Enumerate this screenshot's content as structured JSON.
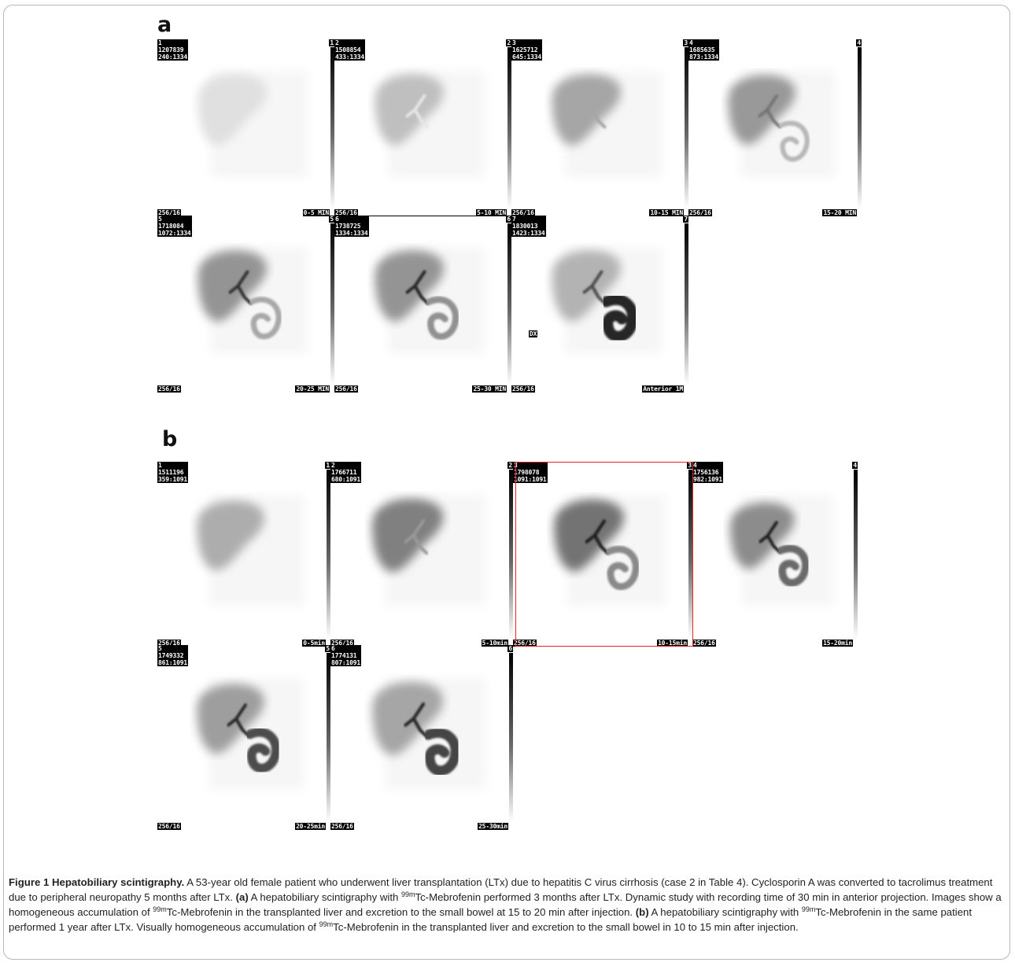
{
  "panel_a": {
    "label": "a",
    "frames": [
      {
        "n": "1",
        "counts": "1207839",
        "ratio": "240:1334",
        "matrix": "256/16",
        "time": "0-5 MIN",
        "bar_num": "1",
        "dark": 0.12,
        "bowel": 0,
        "ducts": 0
      },
      {
        "n": "2",
        "counts": "1508854",
        "ratio": "433:1334",
        "matrix": "256/16",
        "time": "5-10 MIN",
        "bar_num": "2",
        "dark": 0.25,
        "bowel": 0,
        "ducts": 0.1
      },
      {
        "n": "3",
        "counts": "1625712",
        "ratio": "645:1334",
        "matrix": "256/16",
        "time": "10-15 MIN",
        "bar_num": "3",
        "dark": 0.35,
        "bowel": 0,
        "ducts": 0.35
      },
      {
        "n": "4",
        "counts": "1685635",
        "ratio": "873:1334",
        "matrix": "256/16",
        "time": "15-20 MIN",
        "bar_num": "4",
        "dark": 0.4,
        "bowel": 0.05,
        "ducts": 0.55
      },
      {
        "n": "5",
        "counts": "1718084",
        "ratio": "1072:1334",
        "matrix": "256/16",
        "time": "20-25 MIN",
        "bar_num": "5",
        "dark": 0.42,
        "bowel": 0.15,
        "ducts": 0.8
      },
      {
        "n": "6",
        "counts": "1738725",
        "ratio": "1334:1334",
        "matrix": "256/16",
        "time": "25-30 MIN",
        "bar_num": "6",
        "dark": 0.42,
        "bowel": 0.3,
        "ducts": 0.85
      },
      {
        "n": "7",
        "counts": "1830013",
        "ratio": "1423:1334",
        "matrix": "256/16",
        "time": "Anterior 1M",
        "bar_num": "7",
        "dark": 0.3,
        "bowel": 1,
        "ducts": 0.7,
        "marker": "DX"
      }
    ]
  },
  "panel_b": {
    "label": "b",
    "frames": [
      {
        "n": "1",
        "counts": "1511196",
        "ratio": "359:1091",
        "matrix": "256/16",
        "time": "0-5min",
        "bar_num": "1",
        "dark": 0.32,
        "bowel": 0,
        "ducts": 0
      },
      {
        "n": "2",
        "counts": "1766711",
        "ratio": "680:1091",
        "matrix": "256/16",
        "time": "5-10min",
        "bar_num": "2",
        "dark": 0.5,
        "bowel": 0,
        "ducts": 0.4
      },
      {
        "n": "3",
        "counts": "1798078",
        "ratio": "1091:1091",
        "matrix": "256/16",
        "time": "10-15min",
        "bar_num": "3",
        "dark": 0.55,
        "bowel": 0.35,
        "ducts": 0.9
      },
      {
        "n": "4",
        "counts": "1756136",
        "ratio": "982:1091",
        "matrix": "256/16",
        "time": "15-20min",
        "bar_num": "4",
        "dark": 0.45,
        "bowel": 0.55,
        "ducts": 0.9
      },
      {
        "n": "5",
        "counts": "1749332",
        "ratio": "861:1091",
        "matrix": "256/16",
        "time": "20-25min",
        "bar_num": "5",
        "dark": 0.38,
        "bowel": 0.75,
        "ducts": 0.85
      },
      {
        "n": "6",
        "counts": "1774131",
        "ratio": "807:1091",
        "matrix": "256/16",
        "time": "25-30min",
        "bar_num": "6",
        "dark": 0.35,
        "bowel": 0.8,
        "ducts": 0.85
      }
    ]
  },
  "caption": {
    "title": "Figure 1 Hepatobiliary scintigraphy.",
    "s1": " A 53-year old female patient who underwent liver transplantation (LTx) due to hepatitis C virus cirrhosis (case 2 in Table 4). Cyclosporin A was converted to tacrolimus treatment due to peripheral neuropathy 5 months after LTx. ",
    "a_tag": "(a)",
    "s2": " A hepatobiliary scintigraphy with ",
    "sup": "99m",
    "s3": "Tc-Mebrofenin performed 3 months after LTx. Dynamic study with recording time of 30 min in anterior projection. Images show a homogeneous accumulation of ",
    "s4": "Tc-Mebrofenin in the transplanted liver and excretion to the small bowel at 15 to 20 min after injection. ",
    "b_tag": "(b)",
    "s5": " A hepatobiliary scintigraphy with ",
    "s6": "Tc-Mebrofenin in the same patient performed 1 year after LTx. Visually homogeneous accumulation of ",
    "s7": "Tc-Mebrofenin in the transplanted liver and excretion to the small bowel in 10 to 15 min after injection."
  },
  "colors": {
    "highlight": "#e0242b",
    "ink": "#000000"
  }
}
